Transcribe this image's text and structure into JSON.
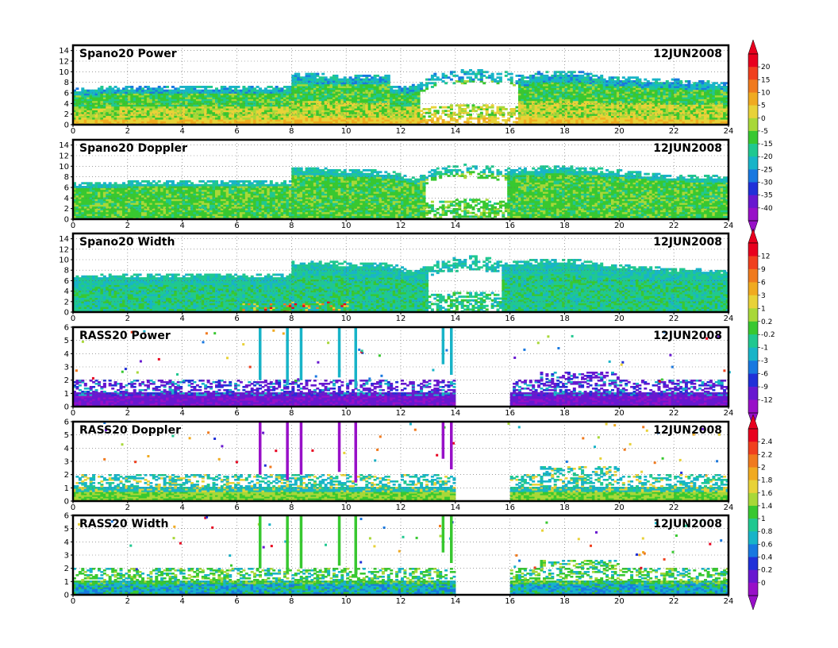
{
  "chart_data": [
    {
      "type": "heatmap",
      "title": "Spano20  Power",
      "date": "12JUN2008",
      "xlabel": "",
      "ylabel": "",
      "xlim": [
        0,
        24
      ],
      "ylim": [
        0,
        15
      ],
      "xticks": [
        0,
        2,
        4,
        6,
        8,
        10,
        12,
        14,
        16,
        18,
        20,
        22,
        24
      ],
      "yticks": [
        0,
        2,
        4,
        6,
        8,
        10,
        12,
        14
      ],
      "grid": true,
      "colorbar": "power",
      "top_profile": [
        [
          0,
          6.8
        ],
        [
          2,
          7.2
        ],
        [
          7.9,
          7.2
        ],
        [
          8,
          9.6
        ],
        [
          11.5,
          9.2
        ],
        [
          11.6,
          7.0
        ],
        [
          12.6,
          7.6
        ],
        [
          13.3,
          9.8
        ],
        [
          14.6,
          10.4
        ],
        [
          16.0,
          9.8
        ],
        [
          16.6,
          8.8
        ],
        [
          16.7,
          9.8
        ],
        [
          18.5,
          10.0
        ],
        [
          19.5,
          9.0
        ],
        [
          21.5,
          8.6
        ],
        [
          24,
          7.8
        ]
      ],
      "gap_intervals": [
        [
          12.6,
          16.2
        ]
      ]
    },
    {
      "type": "heatmap",
      "title": "Spano20  Doppler",
      "date": "12JUN2008",
      "xlabel": "",
      "ylabel": "",
      "xlim": [
        0,
        24
      ],
      "ylim": [
        0,
        15
      ],
      "xticks": [
        0,
        2,
        4,
        6,
        8,
        10,
        12,
        14,
        16,
        18,
        20,
        22,
        24
      ],
      "yticks": [
        0,
        2,
        4,
        6,
        8,
        10,
        12,
        14
      ],
      "grid": true,
      "colorbar": "power",
      "top_profile": [
        [
          0,
          6.8
        ],
        [
          2,
          7.0
        ],
        [
          7.9,
          7.0
        ],
        [
          8,
          9.8
        ],
        [
          11.5,
          9.0
        ],
        [
          12.5,
          7.8
        ],
        [
          13.4,
          9.8
        ],
        [
          14.6,
          10.4
        ],
        [
          16.0,
          9.4
        ],
        [
          17.5,
          10.0
        ],
        [
          19.0,
          9.6
        ],
        [
          21.5,
          8.4
        ],
        [
          24,
          8.0
        ]
      ],
      "gap_intervals": [
        [
          12.8,
          15.8
        ]
      ]
    },
    {
      "type": "heatmap",
      "title": "Spano20  Width",
      "date": "12JUN2008",
      "xlabel": "",
      "ylabel": "",
      "xlim": [
        0,
        24
      ],
      "ylim": [
        0,
        15
      ],
      "xticks": [
        0,
        2,
        4,
        6,
        8,
        10,
        12,
        14,
        16,
        18,
        20,
        22,
        24
      ],
      "yticks": [
        0,
        2,
        4,
        6,
        8,
        10,
        12,
        14
      ],
      "grid": true,
      "colorbar": "width",
      "top_profile": [
        [
          0,
          6.8
        ],
        [
          2,
          7.2
        ],
        [
          7.9,
          7.2
        ],
        [
          8,
          9.8
        ],
        [
          11.5,
          9.2
        ],
        [
          12.5,
          7.8
        ],
        [
          13.3,
          9.8
        ],
        [
          14.6,
          10.6
        ],
        [
          16.0,
          9.6
        ],
        [
          18.0,
          10.2
        ],
        [
          19.5,
          9.0
        ],
        [
          21.5,
          8.4
        ],
        [
          24,
          7.8
        ]
      ],
      "gap_intervals": [
        [
          12.9,
          15.6
        ]
      ]
    },
    {
      "type": "heatmap",
      "title": "RASS20  Power",
      "date": "12JUN2008",
      "xlabel": "",
      "ylabel": "",
      "xlim": [
        0,
        24
      ],
      "ylim": [
        0,
        6
      ],
      "xticks": [
        0,
        2,
        4,
        6,
        8,
        10,
        12,
        14,
        16,
        18,
        20,
        22,
        24
      ],
      "yticks": [
        0,
        1,
        2,
        3,
        4,
        5,
        6
      ],
      "grid": true,
      "colorbar": "width",
      "gap_intervals": [
        [
          13.9,
          15.9
        ]
      ],
      "spikes": [
        [
          6.8,
          2.0
        ],
        [
          7.8,
          1.6
        ],
        [
          8.3,
          2.0
        ],
        [
          9.7,
          2.2
        ],
        [
          10.3,
          1.4
        ],
        [
          13.5,
          3.2
        ],
        [
          13.8,
          2.4
        ]
      ]
    },
    {
      "type": "heatmap",
      "title": "RASS20  Doppler",
      "date": "12JUN2008",
      "xlabel": "",
      "ylabel": "",
      "xlim": [
        0,
        24
      ],
      "ylim": [
        0,
        6
      ],
      "xticks": [
        0,
        2,
        4,
        6,
        8,
        10,
        12,
        14,
        16,
        18,
        20,
        22,
        24
      ],
      "yticks": [
        0,
        1,
        2,
        3,
        4,
        5,
        6
      ],
      "grid": true,
      "colorbar": "rass_doppler",
      "gap_intervals": [
        [
          13.9,
          15.9
        ]
      ],
      "spikes": [
        [
          6.8,
          2.0
        ],
        [
          7.8,
          1.6
        ],
        [
          8.3,
          2.0
        ],
        [
          9.7,
          2.2
        ],
        [
          10.3,
          1.4
        ],
        [
          13.5,
          3.2
        ],
        [
          13.8,
          2.4
        ]
      ]
    },
    {
      "type": "heatmap",
      "title": "RASS20  Width",
      "date": "12JUN2008",
      "xlabel": "",
      "ylabel": "",
      "xlim": [
        0,
        24
      ],
      "ylim": [
        0,
        6
      ],
      "xticks": [
        0,
        2,
        4,
        6,
        8,
        10,
        12,
        14,
        16,
        18,
        20,
        22,
        24
      ],
      "yticks": [
        0,
        1,
        2,
        3,
        4,
        5,
        6
      ],
      "grid": true,
      "colorbar": "rass_doppler",
      "gap_intervals": [
        [
          13.9,
          15.9
        ]
      ],
      "spikes": [
        [
          6.8,
          2.0
        ],
        [
          7.8,
          1.6
        ],
        [
          8.3,
          2.0
        ],
        [
          9.7,
          2.2
        ],
        [
          10.3,
          1.4
        ],
        [
          13.5,
          3.2
        ],
        [
          13.8,
          2.4
        ]
      ]
    }
  ],
  "colorbars": {
    "power": {
      "labels": [
        "20",
        "15",
        "10",
        "5",
        "0",
        "-5",
        "-15",
        "-20",
        "-25",
        "-30",
        "-35",
        "-40"
      ],
      "colors": [
        "#e8001e",
        "#f0401e",
        "#f07a1e",
        "#f0aa20",
        "#e8d238",
        "#a8d838",
        "#38c830",
        "#20c890",
        "#18b4c8",
        "#1878e0",
        "#2030d8",
        "#6818d0",
        "#9810c8"
      ]
    },
    "width": {
      "labels": [
        "12",
        "9",
        "6",
        "3",
        "1",
        "0.2",
        "-0.2",
        "-1",
        "-3",
        "-6",
        "-9",
        "-12"
      ],
      "colors": [
        "#e8001e",
        "#f0401e",
        "#f07a1e",
        "#f0aa20",
        "#e8d238",
        "#a8d838",
        "#38c830",
        "#20c890",
        "#18b4c8",
        "#1878e0",
        "#2030d8",
        "#6818d0",
        "#9810c8"
      ]
    },
    "rass_doppler": {
      "labels": [
        "2.4",
        "2.2",
        "2",
        "1.8",
        "1.6",
        "1.4",
        "1",
        "0.8",
        "0.6",
        "0.4",
        "0.2",
        "0"
      ],
      "colors": [
        "#e8001e",
        "#f0401e",
        "#f07a1e",
        "#f0aa20",
        "#e8d238",
        "#a8d838",
        "#38c830",
        "#20c890",
        "#18b4c8",
        "#1878e0",
        "#2030d8",
        "#6818d0",
        "#9810c8"
      ]
    }
  }
}
